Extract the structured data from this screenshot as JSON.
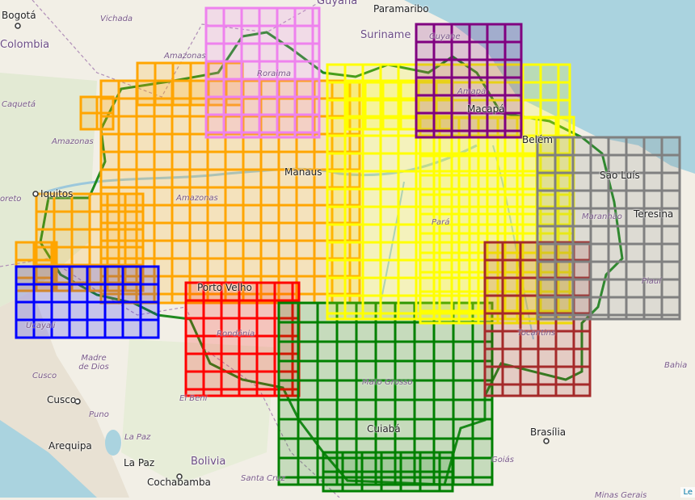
{
  "map": {
    "labels": {
      "bogota": "Bogotá",
      "colombia": "Colombia",
      "vichada": "Vichada",
      "guyana": "Guyana",
      "paramaribo": "Paramaribo",
      "suriname": "Suriname",
      "guyane": "Guyane",
      "amazonas_ve": "Amazonas",
      "roraima": "Roraima",
      "caqueta": "Caquetá",
      "amazonas_co": "Amazonas",
      "amapa": "Amapá",
      "macapa": "Macapá",
      "belem": "Belém",
      "manaus": "Manaus",
      "sao_luis": "São Luís",
      "iquitos": "Iquitos",
      "amazonas_br": "Amazonas",
      "loreto": "oreto",
      "maranhao": "Maranhão",
      "teresina": "Teresina",
      "para": "Pará",
      "piaui": "Piauí",
      "porto_velho": "Porto Velho",
      "ucayali": "Ucayali",
      "rondonia": "Rondônia",
      "tocantins": "Tocantins",
      "madre_de_dios": "Madre de Dios",
      "cusco_region": "Cusco",
      "cusco": "Cusco",
      "el_beni": "El Beni",
      "mato_grosso": "Mato Grosso",
      "bahia": "Bahia",
      "puno": "Puno",
      "cuiaba": "Cuiabá",
      "brasilia": "Brasília",
      "arequipa": "Arequipa",
      "la_paz_region": "La Paz",
      "la_paz": "La Paz",
      "bolivia": "Bolivia",
      "goias": "Goiás",
      "santa_cruz": "Santa Cruz",
      "cochabamba": "Cochabamba",
      "minas_gerais": "Minas Gerais",
      "corner": "Le"
    },
    "tile_layers": [
      {
        "name": "orange",
        "color": "#FFA500"
      },
      {
        "name": "yellow",
        "color": "#FFFF00"
      },
      {
        "name": "green",
        "color": "#008000"
      },
      {
        "name": "violet",
        "color": "#EE82EE"
      },
      {
        "name": "purple",
        "color": "#800080"
      },
      {
        "name": "gray",
        "color": "#808080"
      },
      {
        "name": "brown",
        "color": "#A52A2A"
      },
      {
        "name": "red",
        "color": "#FF0000"
      },
      {
        "name": "blue",
        "color": "#0000FF"
      }
    ],
    "colors": {
      "ocean": "#aad3df",
      "land": "#f2efe6",
      "boundary": "#1f8a1f",
      "river": "#9cc8dc"
    }
  }
}
